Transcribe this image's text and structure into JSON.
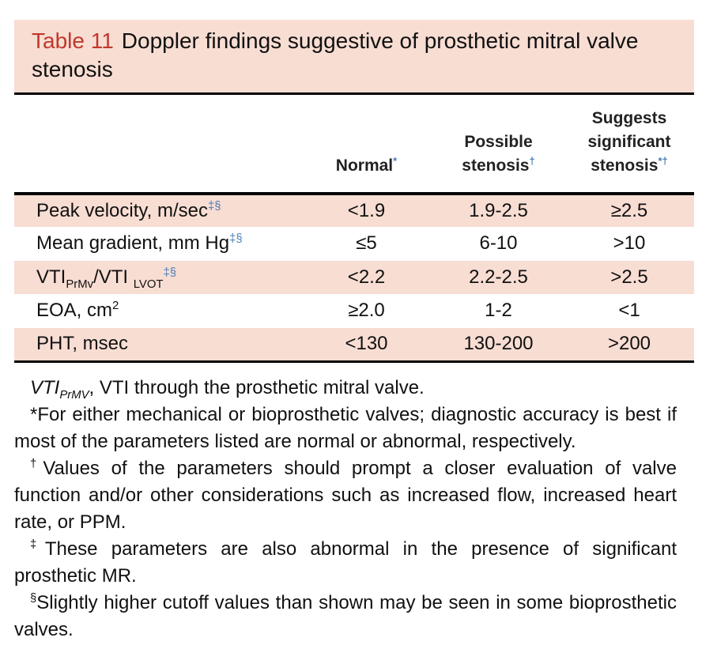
{
  "title": {
    "label": "Table 11",
    "text": "Doppler findings suggestive of prosthetic mitral valve stenosis"
  },
  "table": {
    "columns": [
      [
        {
          "text": "Normal"
        },
        {
          "sup": "*"
        }
      ],
      [
        {
          "text": "Possible stenosis"
        },
        {
          "sup": "†"
        }
      ],
      [
        {
          "text": "Suggests significant stenosis"
        },
        {
          "sup": "*†"
        }
      ]
    ],
    "rows": [
      {
        "label": [
          {
            "text": "Peak velocity, m/sec"
          },
          {
            "sup": "‡§"
          }
        ],
        "values": [
          "<1.9",
          "1.9-2.5",
          "≥2.5"
        ]
      },
      {
        "label": [
          {
            "text": "Mean gradient, mm Hg"
          },
          {
            "sup": "‡§"
          }
        ],
        "values": [
          "≤5",
          "6-10",
          ">10"
        ]
      },
      {
        "label": [
          {
            "text": "VTI"
          },
          {
            "sub": "PrMv"
          },
          {
            "text": "/VTI "
          },
          {
            "sub": "LVOT"
          },
          {
            "sup": "‡§"
          }
        ],
        "values": [
          "<2.2",
          "2.2-2.5",
          ">2.5"
        ]
      },
      {
        "label": [
          {
            "text": "EOA, cm"
          },
          {
            "plainsup": "2"
          }
        ],
        "values": [
          "≥2.0",
          "1-2",
          "<1"
        ]
      },
      {
        "label": [
          {
            "text": "PHT, msec"
          }
        ],
        "values": [
          "<130",
          "130-200",
          ">200"
        ]
      }
    ]
  },
  "footnotes": [
    [
      {
        "italic": "VTI"
      },
      {
        "italicsub": "PrMV"
      },
      {
        "text": ", VTI through the prosthetic mitral valve."
      }
    ],
    [
      {
        "text": "*For either mechanical or bioprosthetic valves; diagnostic accuracy is best if most of the parameters listed are normal or abnormal, respectively."
      }
    ],
    [
      {
        "plainsup": "†"
      },
      {
        "text": "Values of the parameters should prompt a closer evaluation of valve function and/or other considerations such as increased flow, increased heart rate, or PPM."
      }
    ],
    [
      {
        "plainsup": "‡"
      },
      {
        "text": "These parameters are also abnormal in the presence of significant prosthetic MR."
      }
    ],
    [
      {
        "plainsup": "§"
      },
      {
        "text": "Slightly higher cutoff values than shown may be seen in some bioprosthetic valves."
      }
    ]
  ]
}
